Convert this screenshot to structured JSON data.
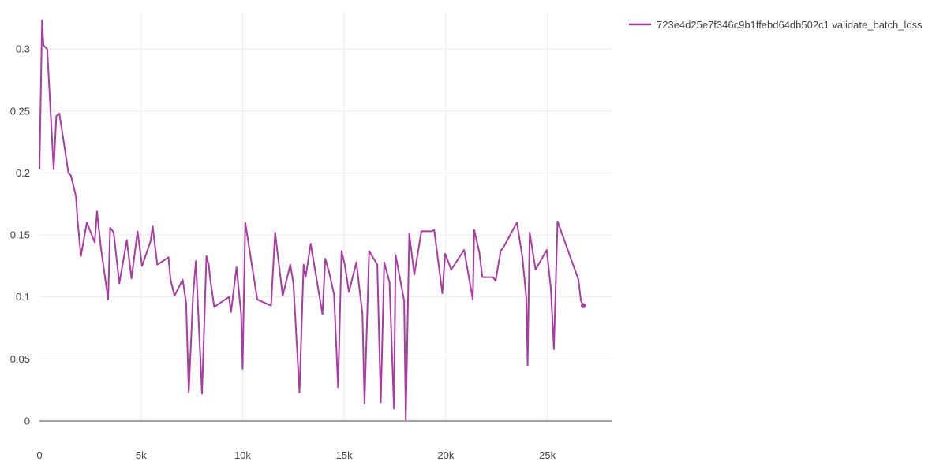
{
  "chart_data": {
    "type": "line",
    "title": "",
    "xlabel": "",
    "ylabel": "",
    "xlim": [
      0,
      28200
    ],
    "ylim": [
      0,
      0.33
    ],
    "x_ticks": [
      0,
      5000,
      10000,
      15000,
      20000,
      25000
    ],
    "x_tick_labels": [
      "0",
      "5k",
      "10k",
      "15k",
      "20k",
      "25k"
    ],
    "y_ticks": [
      0,
      0.05,
      0.1,
      0.15,
      0.2,
      0.25,
      0.3
    ],
    "y_tick_labels": [
      "0",
      "0.05",
      "0.1",
      "0.15",
      "0.2",
      "0.25",
      "0.3"
    ],
    "grid": true,
    "legend_position": "top-right",
    "series": [
      {
        "name": "723e4d25e7f346c9b1ffebd64db502c1 validate_batch_loss",
        "color": "#ab3ba2",
        "x": [
          0,
          130,
          200,
          380,
          700,
          830,
          980,
          1430,
          1550,
          1800,
          1870,
          2040,
          2330,
          2720,
          2830,
          3030,
          3380,
          3480,
          3650,
          3930,
          4300,
          4530,
          4830,
          5050,
          5470,
          5570,
          5800,
          6350,
          6450,
          6650,
          7050,
          7220,
          7350,
          7560,
          7700,
          8000,
          8220,
          8330,
          8400,
          8600,
          9330,
          9430,
          9700,
          9930,
          10000,
          10130,
          10720,
          11400,
          11600,
          11970,
          12350,
          12500,
          12800,
          13000,
          13100,
          13350,
          13930,
          14070,
          14270,
          14500,
          14700,
          14870,
          15030,
          15230,
          15600,
          15900,
          16000,
          16230,
          16630,
          16800,
          16970,
          17230,
          17450,
          17530,
          17950,
          18030,
          18200,
          18450,
          18800,
          19300,
          19430,
          19830,
          19970,
          20270,
          20900,
          21330,
          21400,
          21650,
          21800,
          22330,
          22450,
          22700,
          22870,
          23500,
          23770,
          23970,
          24030,
          24130,
          24420,
          24970,
          25170,
          25320,
          25500,
          26530,
          26650,
          26770
        ],
        "values": [
          0.203,
          0.323,
          0.303,
          0.3,
          0.203,
          0.246,
          0.248,
          0.2,
          0.198,
          0.181,
          0.163,
          0.133,
          0.16,
          0.144,
          0.169,
          0.139,
          0.098,
          0.156,
          0.152,
          0.111,
          0.146,
          0.115,
          0.153,
          0.125,
          0.145,
          0.157,
          0.126,
          0.132,
          0.114,
          0.101,
          0.114,
          0.095,
          0.023,
          0.101,
          0.129,
          0.022,
          0.133,
          0.126,
          0.115,
          0.092,
          0.1,
          0.088,
          0.124,
          0.086,
          0.042,
          0.16,
          0.098,
          0.093,
          0.152,
          0.101,
          0.126,
          0.111,
          0.023,
          0.126,
          0.116,
          0.143,
          0.086,
          0.131,
          0.119,
          0.102,
          0.027,
          0.137,
          0.126,
          0.104,
          0.128,
          0.086,
          0.014,
          0.137,
          0.126,
          0.015,
          0.128,
          0.112,
          0.01,
          0.134,
          0.097,
          0.001,
          0.151,
          0.118,
          0.153,
          0.153,
          0.154,
          0.103,
          0.135,
          0.122,
          0.138,
          0.098,
          0.154,
          0.136,
          0.116,
          0.116,
          0.113,
          0.137,
          0.141,
          0.16,
          0.132,
          0.098,
          0.045,
          0.152,
          0.122,
          0.138,
          0.107,
          0.058,
          0.161,
          0.114,
          0.097,
          0.093
        ]
      }
    ]
  }
}
